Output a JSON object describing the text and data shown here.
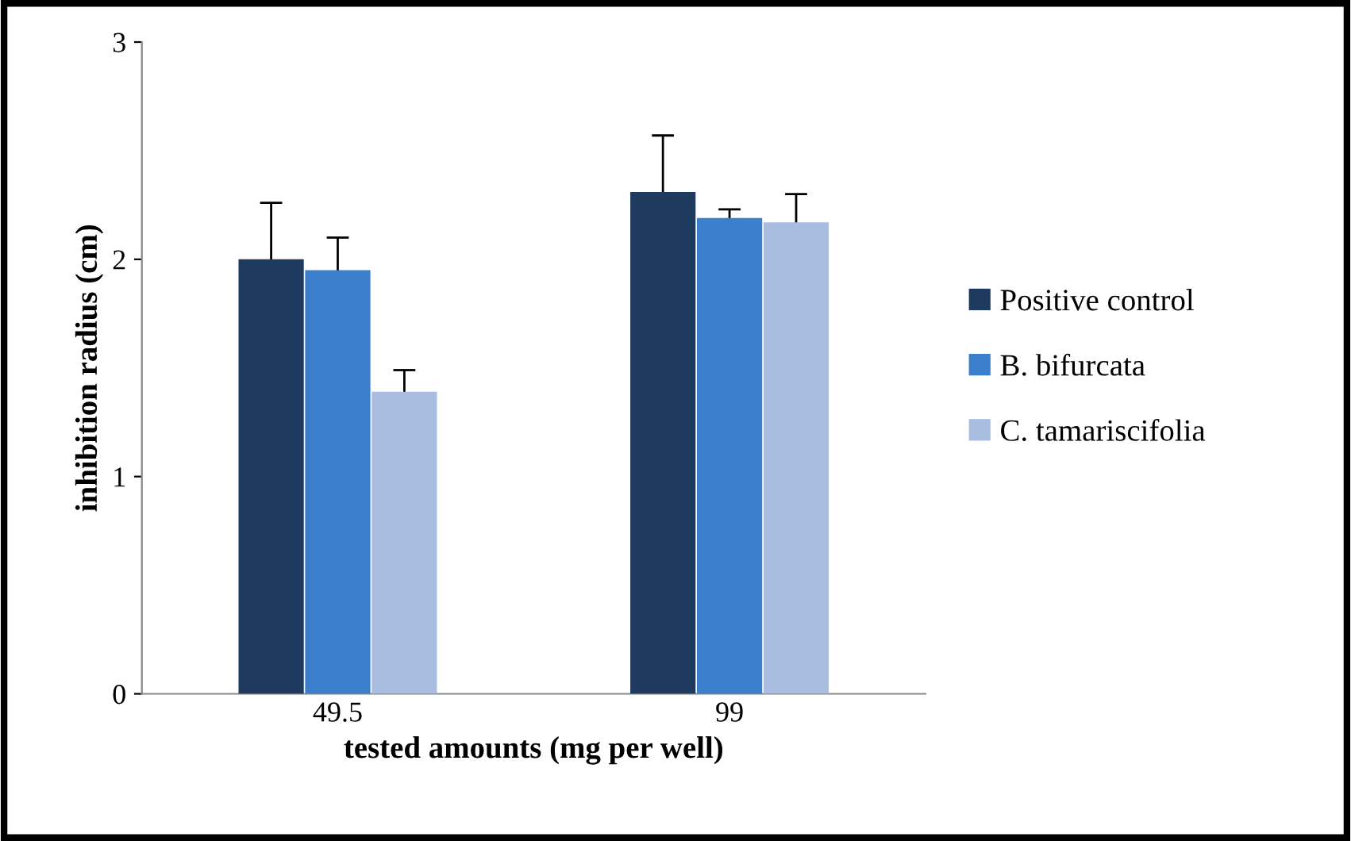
{
  "chart_data": {
    "type": "bar",
    "categories": [
      "49.5",
      "99"
    ],
    "xlabel": "tested amounts (mg per well)",
    "ylabel": "inhibition radius (cm)",
    "series": [
      {
        "name": "Positive control",
        "color": "#1f3a5f",
        "values": [
          2.0,
          2.31
        ],
        "errors": [
          0.26,
          0.26
        ]
      },
      {
        "name": "B. bifurcata",
        "color": "#3b7fcc",
        "values": [
          1.95,
          2.19
        ],
        "errors": [
          0.15,
          0.04
        ]
      },
      {
        "name": "C. tamariscifolia",
        "color": "#a9bde0",
        "values": [
          1.39,
          2.17
        ],
        "errors": [
          0.1,
          0.13
        ]
      }
    ],
    "ylim": [
      0,
      3
    ],
    "yticks": [
      0,
      1,
      2,
      3
    ],
    "grid": false,
    "legend": "right"
  }
}
